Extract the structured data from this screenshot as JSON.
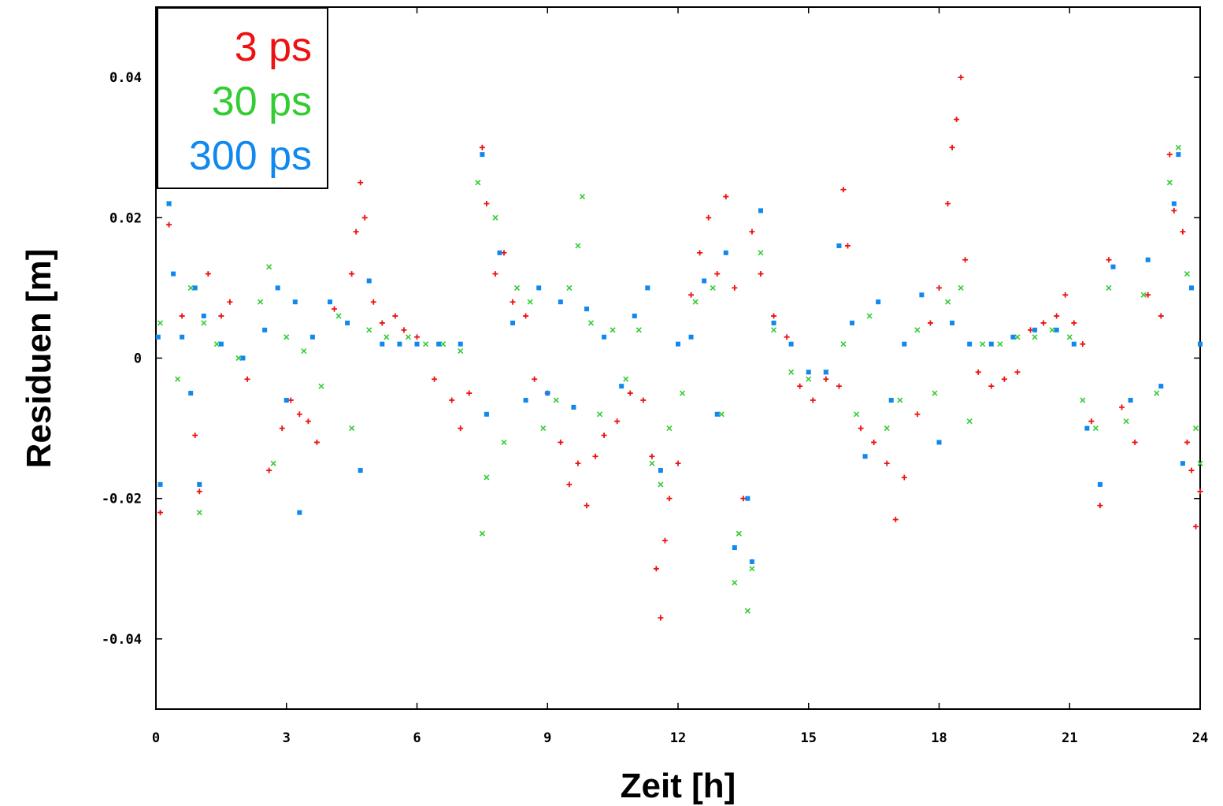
{
  "chart_data": {
    "type": "scatter",
    "title": "",
    "xlabel": "Zeit [h]",
    "ylabel": "Residuen [m]",
    "xlim": [
      0,
      24
    ],
    "ylim": [
      -0.05,
      0.05
    ],
    "x_ticks": [
      0,
      3,
      6,
      9,
      12,
      15,
      18,
      21,
      24
    ],
    "x_tick_labels": [
      "0",
      "3",
      "6",
      "9",
      "12",
      "15",
      "18",
      "21",
      "24"
    ],
    "y_ticks": [
      0.04,
      0.02,
      0,
      -0.02,
      -0.04
    ],
    "y_tick_labels": [
      "0.04",
      "0.02",
      "0",
      "-0.02",
      "-0.04"
    ],
    "grid": false,
    "legend_position": "top-left",
    "series": [
      {
        "name": "3 ps",
        "color": "#ee1111",
        "marker": "plus",
        "points": [
          [
            0.1,
            -0.022
          ],
          [
            0.3,
            0.019
          ],
          [
            0.6,
            0.006
          ],
          [
            0.9,
            -0.011
          ],
          [
            1.0,
            -0.019
          ],
          [
            1.2,
            0.012
          ],
          [
            1.5,
            0.006
          ],
          [
            1.7,
            0.008
          ],
          [
            2.1,
            -0.003
          ],
          [
            2.6,
            -0.016
          ],
          [
            2.9,
            -0.01
          ],
          [
            3.1,
            -0.006
          ],
          [
            3.3,
            -0.008
          ],
          [
            3.5,
            -0.009
          ],
          [
            3.7,
            -0.012
          ],
          [
            4.1,
            0.007
          ],
          [
            4.5,
            0.012
          ],
          [
            4.6,
            0.018
          ],
          [
            4.7,
            0.025
          ],
          [
            4.8,
            0.02
          ],
          [
            5.0,
            0.008
          ],
          [
            5.2,
            0.005
          ],
          [
            5.5,
            0.006
          ],
          [
            5.7,
            0.004
          ],
          [
            6.0,
            0.003
          ],
          [
            6.4,
            -0.003
          ],
          [
            6.8,
            -0.006
          ],
          [
            7.0,
            -0.01
          ],
          [
            7.2,
            -0.005
          ],
          [
            7.5,
            0.03
          ],
          [
            7.6,
            0.022
          ],
          [
            7.8,
            0.012
          ],
          [
            8.0,
            0.015
          ],
          [
            8.2,
            0.008
          ],
          [
            8.5,
            0.006
          ],
          [
            8.7,
            -0.003
          ],
          [
            9.0,
            -0.005
          ],
          [
            9.3,
            -0.012
          ],
          [
            9.5,
            -0.018
          ],
          [
            9.7,
            -0.015
          ],
          [
            9.9,
            -0.021
          ],
          [
            10.1,
            -0.014
          ],
          [
            10.3,
            -0.011
          ],
          [
            10.6,
            -0.009
          ],
          [
            10.9,
            -0.005
          ],
          [
            11.2,
            -0.006
          ],
          [
            11.4,
            -0.014
          ],
          [
            11.5,
            -0.03
          ],
          [
            11.6,
            -0.037
          ],
          [
            11.7,
            -0.026
          ],
          [
            11.8,
            -0.02
          ],
          [
            12.0,
            -0.015
          ],
          [
            12.3,
            0.009
          ],
          [
            12.5,
            0.015
          ],
          [
            12.7,
            0.02
          ],
          [
            12.9,
            0.012
          ],
          [
            13.1,
            0.023
          ],
          [
            13.3,
            0.01
          ],
          [
            13.5,
            -0.02
          ],
          [
            13.7,
            0.018
          ],
          [
            13.9,
            0.012
          ],
          [
            14.2,
            0.006
          ],
          [
            14.5,
            0.003
          ],
          [
            14.8,
            -0.004
          ],
          [
            15.1,
            -0.006
          ],
          [
            15.4,
            -0.003
          ],
          [
            15.7,
            -0.004
          ],
          [
            15.8,
            0.024
          ],
          [
            15.9,
            0.016
          ],
          [
            16.2,
            -0.01
          ],
          [
            16.5,
            -0.012
          ],
          [
            16.8,
            -0.015
          ],
          [
            17.0,
            -0.023
          ],
          [
            17.2,
            -0.017
          ],
          [
            17.5,
            -0.008
          ],
          [
            17.8,
            0.005
          ],
          [
            18.0,
            0.01
          ],
          [
            18.2,
            0.022
          ],
          [
            18.3,
            0.03
          ],
          [
            18.4,
            0.034
          ],
          [
            18.5,
            0.04
          ],
          [
            18.6,
            0.014
          ],
          [
            18.9,
            -0.002
          ],
          [
            19.2,
            -0.004
          ],
          [
            19.5,
            -0.003
          ],
          [
            19.8,
            -0.002
          ],
          [
            20.1,
            0.004
          ],
          [
            20.4,
            0.005
          ],
          [
            20.7,
            0.006
          ],
          [
            20.9,
            0.009
          ],
          [
            21.1,
            0.005
          ],
          [
            21.3,
            0.002
          ],
          [
            21.5,
            -0.009
          ],
          [
            21.7,
            -0.021
          ],
          [
            21.9,
            0.014
          ],
          [
            22.2,
            -0.007
          ],
          [
            22.5,
            -0.012
          ],
          [
            22.8,
            0.009
          ],
          [
            23.1,
            0.006
          ],
          [
            23.3,
            0.029
          ],
          [
            23.4,
            0.021
          ],
          [
            23.6,
            0.018
          ],
          [
            23.7,
            -0.012
          ],
          [
            23.8,
            -0.016
          ],
          [
            23.9,
            -0.024
          ],
          [
            24.0,
            -0.019
          ]
        ]
      },
      {
        "name": "30 ps",
        "color": "#33cc33",
        "marker": "cross",
        "points": [
          [
            0.1,
            0.005
          ],
          [
            0.3,
            0.022
          ],
          [
            0.5,
            -0.003
          ],
          [
            0.8,
            0.01
          ],
          [
            1.0,
            -0.022
          ],
          [
            1.1,
            0.005
          ],
          [
            1.4,
            0.002
          ],
          [
            1.9,
            0.0
          ],
          [
            2.4,
            0.008
          ],
          [
            2.6,
            0.013
          ],
          [
            2.7,
            -0.015
          ],
          [
            3.0,
            0.003
          ],
          [
            3.4,
            0.001
          ],
          [
            3.8,
            -0.004
          ],
          [
            4.2,
            0.006
          ],
          [
            4.5,
            -0.01
          ],
          [
            4.9,
            0.004
          ],
          [
            5.3,
            0.003
          ],
          [
            5.8,
            0.003
          ],
          [
            6.2,
            0.002
          ],
          [
            6.6,
            0.002
          ],
          [
            7.0,
            0.001
          ],
          [
            7.4,
            0.025
          ],
          [
            7.5,
            -0.025
          ],
          [
            7.6,
            -0.017
          ],
          [
            7.8,
            0.02
          ],
          [
            8.0,
            -0.012
          ],
          [
            8.3,
            0.01
          ],
          [
            8.6,
            0.008
          ],
          [
            8.9,
            -0.01
          ],
          [
            9.2,
            -0.006
          ],
          [
            9.5,
            0.01
          ],
          [
            9.7,
            0.016
          ],
          [
            9.8,
            0.023
          ],
          [
            10.0,
            0.005
          ],
          [
            10.2,
            -0.008
          ],
          [
            10.5,
            0.004
          ],
          [
            10.8,
            -0.003
          ],
          [
            11.1,
            0.004
          ],
          [
            11.4,
            -0.015
          ],
          [
            11.6,
            -0.018
          ],
          [
            11.8,
            -0.01
          ],
          [
            12.1,
            -0.005
          ],
          [
            12.4,
            0.008
          ],
          [
            12.8,
            0.01
          ],
          [
            13.0,
            -0.008
          ],
          [
            13.3,
            -0.032
          ],
          [
            13.4,
            -0.025
          ],
          [
            13.6,
            -0.036
          ],
          [
            13.7,
            -0.03
          ],
          [
            13.9,
            0.015
          ],
          [
            14.2,
            0.004
          ],
          [
            14.6,
            -0.002
          ],
          [
            15.0,
            -0.003
          ],
          [
            15.4,
            -0.002
          ],
          [
            15.8,
            0.002
          ],
          [
            16.1,
            -0.008
          ],
          [
            16.4,
            0.006
          ],
          [
            16.8,
            -0.01
          ],
          [
            17.1,
            -0.006
          ],
          [
            17.5,
            0.004
          ],
          [
            17.9,
            -0.005
          ],
          [
            18.2,
            0.008
          ],
          [
            18.5,
            0.01
          ],
          [
            18.7,
            -0.009
          ],
          [
            19.0,
            0.002
          ],
          [
            19.4,
            0.002
          ],
          [
            19.8,
            0.003
          ],
          [
            20.2,
            0.003
          ],
          [
            20.6,
            0.004
          ],
          [
            21.0,
            0.003
          ],
          [
            21.3,
            -0.006
          ],
          [
            21.6,
            -0.01
          ],
          [
            21.9,
            0.01
          ],
          [
            22.3,
            -0.009
          ],
          [
            22.7,
            0.009
          ],
          [
            23.0,
            -0.005
          ],
          [
            23.3,
            0.025
          ],
          [
            23.5,
            0.03
          ],
          [
            23.7,
            0.012
          ],
          [
            23.9,
            -0.01
          ],
          [
            24.0,
            -0.015
          ]
        ]
      },
      {
        "name": "300 ps",
        "color": "#1188ee",
        "marker": "square",
        "points": [
          [
            0.05,
            0.003
          ],
          [
            0.1,
            -0.018
          ],
          [
            0.3,
            0.022
          ],
          [
            0.4,
            0.012
          ],
          [
            0.6,
            0.003
          ],
          [
            0.8,
            -0.005
          ],
          [
            0.9,
            0.01
          ],
          [
            1.0,
            -0.018
          ],
          [
            1.1,
            0.006
          ],
          [
            1.5,
            0.002
          ],
          [
            2.0,
            0.0
          ],
          [
            2.5,
            0.004
          ],
          [
            2.8,
            0.01
          ],
          [
            3.0,
            -0.006
          ],
          [
            3.2,
            0.008
          ],
          [
            3.3,
            -0.022
          ],
          [
            3.6,
            0.003
          ],
          [
            4.0,
            0.008
          ],
          [
            4.4,
            0.005
          ],
          [
            4.7,
            -0.016
          ],
          [
            4.9,
            0.011
          ],
          [
            5.2,
            0.002
          ],
          [
            5.6,
            0.002
          ],
          [
            6.0,
            0.002
          ],
          [
            6.5,
            0.002
          ],
          [
            7.0,
            0.002
          ],
          [
            7.5,
            0.029
          ],
          [
            7.6,
            -0.008
          ],
          [
            7.9,
            0.015
          ],
          [
            8.2,
            0.005
          ],
          [
            8.5,
            -0.006
          ],
          [
            8.8,
            0.01
          ],
          [
            9.0,
            -0.005
          ],
          [
            9.3,
            0.008
          ],
          [
            9.6,
            -0.007
          ],
          [
            9.9,
            0.007
          ],
          [
            10.3,
            0.003
          ],
          [
            10.7,
            -0.004
          ],
          [
            11.0,
            0.006
          ],
          [
            11.3,
            0.01
          ],
          [
            11.6,
            -0.016
          ],
          [
            12.0,
            0.002
          ],
          [
            12.3,
            0.003
          ],
          [
            12.6,
            0.011
          ],
          [
            12.9,
            -0.008
          ],
          [
            13.1,
            0.015
          ],
          [
            13.3,
            -0.027
          ],
          [
            13.6,
            -0.02
          ],
          [
            13.7,
            -0.029
          ],
          [
            13.9,
            0.021
          ],
          [
            14.2,
            0.005
          ],
          [
            14.6,
            0.002
          ],
          [
            15.0,
            -0.002
          ],
          [
            15.4,
            -0.002
          ],
          [
            15.7,
            0.016
          ],
          [
            16.0,
            0.005
          ],
          [
            16.3,
            -0.014
          ],
          [
            16.6,
            0.008
          ],
          [
            16.9,
            -0.006
          ],
          [
            17.2,
            0.002
          ],
          [
            17.6,
            0.009
          ],
          [
            18.0,
            -0.012
          ],
          [
            18.3,
            0.005
          ],
          [
            18.7,
            0.002
          ],
          [
            19.2,
            0.002
          ],
          [
            19.7,
            0.003
          ],
          [
            20.2,
            0.004
          ],
          [
            20.7,
            0.004
          ],
          [
            21.1,
            0.002
          ],
          [
            21.4,
            -0.01
          ],
          [
            21.7,
            -0.018
          ],
          [
            22.0,
            0.013
          ],
          [
            22.4,
            -0.006
          ],
          [
            22.8,
            0.014
          ],
          [
            23.1,
            -0.004
          ],
          [
            23.4,
            0.022
          ],
          [
            23.5,
            0.029
          ],
          [
            23.6,
            -0.015
          ],
          [
            23.8,
            0.01
          ],
          [
            24.0,
            0.002
          ]
        ]
      }
    ]
  }
}
